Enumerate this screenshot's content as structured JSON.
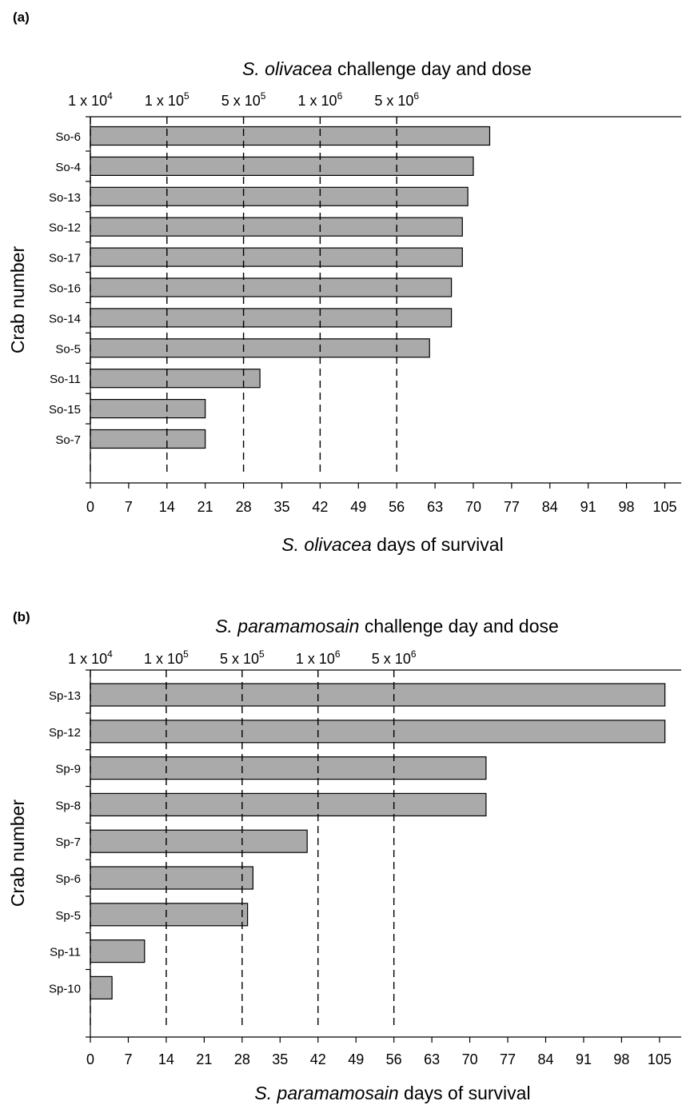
{
  "chart_data": [
    {
      "type": "bar",
      "orientation": "horizontal",
      "panel_label": "(a)",
      "top_title": "S. olivacea challenge day and dose",
      "top_title_italic": "S. olivacea",
      "top_title_rest": " challenge day and dose",
      "xlabel": "S. olivacea days of survival",
      "xlabel_italic": "S. olivacea",
      "xlabel_rest": " days of survival",
      "ylabel": "Crab number",
      "xlim": [
        0,
        108
      ],
      "xticks": [
        0,
        7,
        14,
        21,
        28,
        35,
        42,
        49,
        56,
        63,
        70,
        77,
        84,
        91,
        98,
        105
      ],
      "categories": [
        "So-6",
        "So-4",
        "So-13",
        "So-12",
        "So-17",
        "So-16",
        "So-14",
        "So-5",
        "So-11",
        "So-15",
        "So-7"
      ],
      "values": [
        73,
        70,
        69,
        68,
        68,
        66,
        66,
        62,
        31,
        21,
        21
      ],
      "challenges": [
        {
          "day": 0,
          "base": "1 x 10",
          "exp": "4"
        },
        {
          "day": 14,
          "base": "1 x 10",
          "exp": "5"
        },
        {
          "day": 28,
          "base": "5 x 10",
          "exp": "5"
        },
        {
          "day": 42,
          "base": "1 x 10",
          "exp": "6"
        },
        {
          "day": 56,
          "base": "5 x 10",
          "exp": "6"
        }
      ],
      "bar_color": "#aaaaaa"
    },
    {
      "type": "bar",
      "orientation": "horizontal",
      "panel_label": "(b)",
      "top_title": "S. paramamosain challenge day and dose",
      "top_title_italic": "S. paramamosain",
      "top_title_rest": " challenge day and dose",
      "xlabel": "S. paramamosain days of survival",
      "xlabel_italic": "S. paramamosain",
      "xlabel_rest": " days of survival",
      "ylabel": "Crab number",
      "xlim": [
        0,
        109
      ],
      "xticks": [
        0,
        7,
        14,
        21,
        28,
        35,
        42,
        49,
        56,
        63,
        70,
        77,
        84,
        91,
        98,
        105
      ],
      "categories": [
        "Sp-13",
        "Sp-12",
        "Sp-9",
        "Sp-8",
        "Sp-7",
        "Sp-6",
        "Sp-5",
        "Sp-11",
        "Sp-10"
      ],
      "values": [
        106,
        106,
        73,
        73,
        40,
        30,
        29,
        10,
        4
      ],
      "challenges": [
        {
          "day": 0,
          "base": "1 x 10",
          "exp": "4"
        },
        {
          "day": 14,
          "base": "1 x 10",
          "exp": "5"
        },
        {
          "day": 28,
          "base": "5 x 10",
          "exp": "5"
        },
        {
          "day": 42,
          "base": "1 x 10",
          "exp": "6"
        },
        {
          "day": 56,
          "base": "5 x 10",
          "exp": "6"
        }
      ],
      "bar_color": "#aaaaaa"
    }
  ]
}
